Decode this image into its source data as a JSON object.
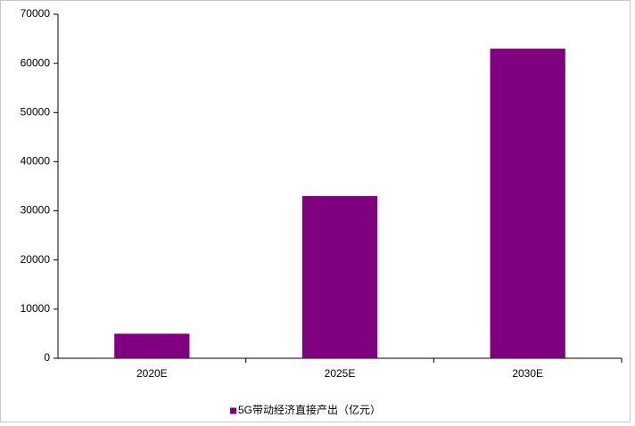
{
  "chart_data": {
    "type": "bar",
    "categories": [
      "2020E",
      "2025E",
      "2030E"
    ],
    "series": [
      {
        "name": "5G带动经济直接产出（亿元）",
        "color": "#800080",
        "values": [
          5000,
          33000,
          63000
        ]
      }
    ],
    "ylim": [
      0,
      70000
    ],
    "yticks": [
      0,
      10000,
      20000,
      30000,
      40000,
      50000,
      60000,
      70000
    ],
    "grid": false,
    "legend": "bottom"
  }
}
